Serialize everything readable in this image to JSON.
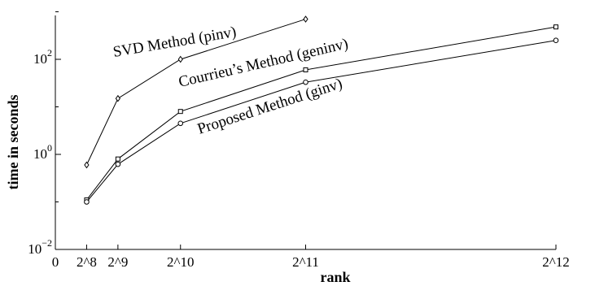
{
  "chart_data": {
    "type": "line",
    "xlabel": "rank",
    "ylabel": "time in seconds",
    "x": [
      256,
      512,
      1024,
      2048,
      4096
    ],
    "x_tick_values": [
      0,
      256,
      512,
      1024,
      2048,
      4096
    ],
    "x_tick_labels": [
      "0",
      "2^8",
      "2^9",
      "2^10",
      "2^11",
      "2^12"
    ],
    "ylim": [
      0.01,
      2000
    ],
    "y_scale": "log",
    "y_ticks": [
      {
        "value": 0.01,
        "base": "10",
        "exp": "−2"
      },
      {
        "value": 1,
        "base": "10",
        "exp": "0"
      },
      {
        "value": 100,
        "base": "10",
        "exp": "2"
      }
    ],
    "grid": false,
    "legend": "none",
    "series": [
      {
        "name": "SVD Method (pinv)",
        "marker": "diamond",
        "x": [
          256,
          512,
          1024,
          2048
        ],
        "values": [
          0.6,
          15,
          100,
          700
        ]
      },
      {
        "name": "Courrieu’s Method (geninv)",
        "marker": "square",
        "x": [
          256,
          512,
          1024,
          2048,
          4096
        ],
        "values": [
          0.11,
          0.8,
          8,
          60,
          480
        ]
      },
      {
        "name": "Proposed Method (ginv)",
        "marker": "circle",
        "x": [
          256,
          512,
          1024,
          2048,
          4096
        ],
        "values": [
          0.1,
          0.62,
          4.5,
          33,
          250
        ]
      }
    ]
  }
}
